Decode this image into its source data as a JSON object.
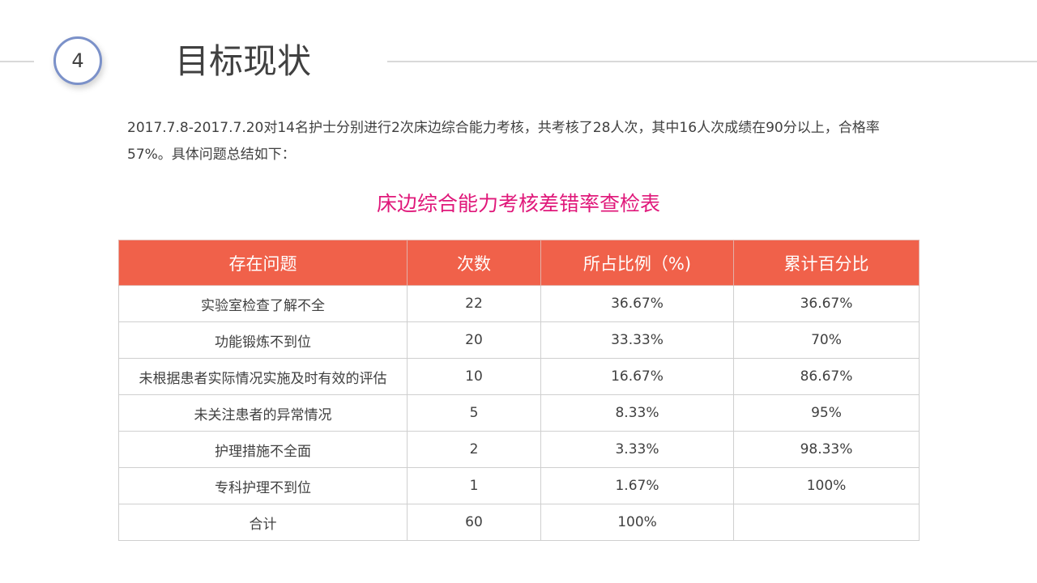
{
  "section": {
    "number": "4",
    "title": "目标现状"
  },
  "intro": {
    "text": "2017.7.8-2017.7.20对14名护士分别进行2次床边综合能力考核，共考核了28人次，其中16人次成绩在90分以上，合格率 57%。具体问题总结如下："
  },
  "table": {
    "title": "床边综合能力考核差错率查检表",
    "headers": [
      "存在问题",
      "次数",
      "所占比例（%)",
      "累计百分比"
    ],
    "rows": [
      [
        "实验室检查了解不全",
        "22",
        "36.67%",
        "36.67%"
      ],
      [
        "功能锻炼不到位",
        "20",
        "33.33%",
        "70%"
      ],
      [
        "未根据患者实际情况实施及时有效的评估",
        "10",
        "16.67%",
        "86.67%"
      ],
      [
        "未关注患者的异常情况",
        "5",
        "8.33%",
        "95%"
      ],
      [
        "护理措施不全面",
        "2",
        "3.33%",
        "98.33%"
      ],
      [
        "专科护理不到位",
        "1",
        "1.67%",
        "100%"
      ],
      [
        "合计",
        "60",
        "100%",
        ""
      ]
    ]
  },
  "colors": {
    "header_bg": "#f0614a",
    "table_title": "#e0187a",
    "circle_border": "#7b91c9",
    "text": "#404040"
  }
}
